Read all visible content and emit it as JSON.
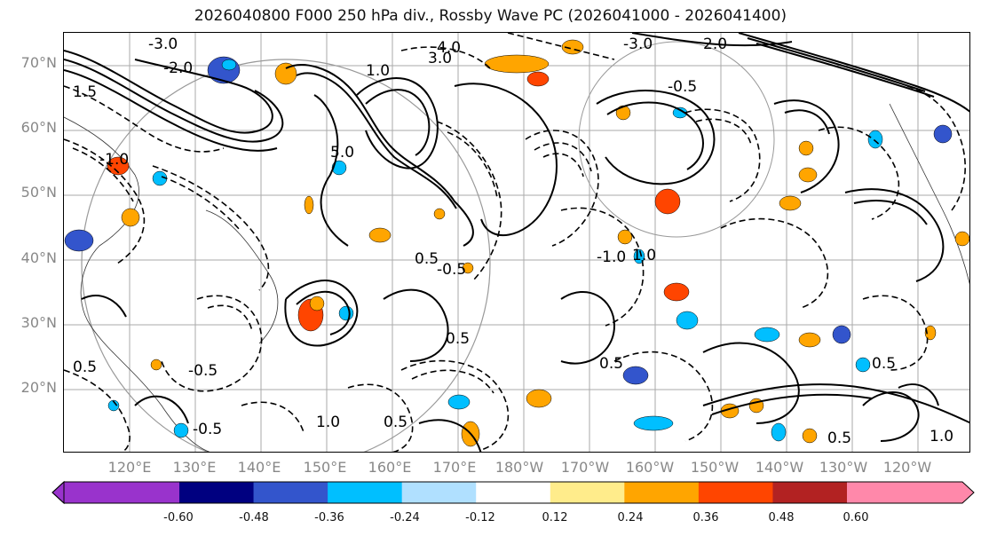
{
  "title": "2026040800 F000 250 hPa div., Rossby Wave PC (2026041000 - 2026041400)",
  "map": {
    "lat_labels": [
      "70°N",
      "60°N",
      "50°N",
      "40°N",
      "30°N",
      "20°N"
    ],
    "lon_labels": [
      "120°E",
      "130°E",
      "140°E",
      "150°E",
      "160°E",
      "170°E",
      "180°W",
      "170°W",
      "160°W",
      "150°W",
      "140°W",
      "130°W",
      "120°W"
    ],
    "contour_labels": [
      "-3.0",
      "-2.0",
      "1.5",
      "4.0",
      "3.0",
      "-3.0",
      "2.0",
      "-0.5",
      "5.0",
      "1.0",
      "0.5",
      "-0.5",
      "0.5",
      "-1.0",
      "0.5",
      "1.0",
      "-0.5",
      "0.5",
      "0.5",
      "1.0",
      "0.5",
      "-1.0",
      "0.5",
      "1.0",
      "-0.5"
    ],
    "grid": true
  },
  "colorbar": {
    "colors": [
      "#9933cc",
      "#000080",
      "#3355cc",
      "#00bfff",
      "#b0e0ff",
      "#ffffff",
      "#ffec8b",
      "#ffa500",
      "#ff4500",
      "#b22222",
      "#ff88aa"
    ],
    "ticks": [
      "-0.60",
      "-0.48",
      "-0.36",
      "-0.24",
      "-0.12",
      "0.12",
      "0.24",
      "0.36",
      "0.48",
      "0.60"
    ]
  }
}
